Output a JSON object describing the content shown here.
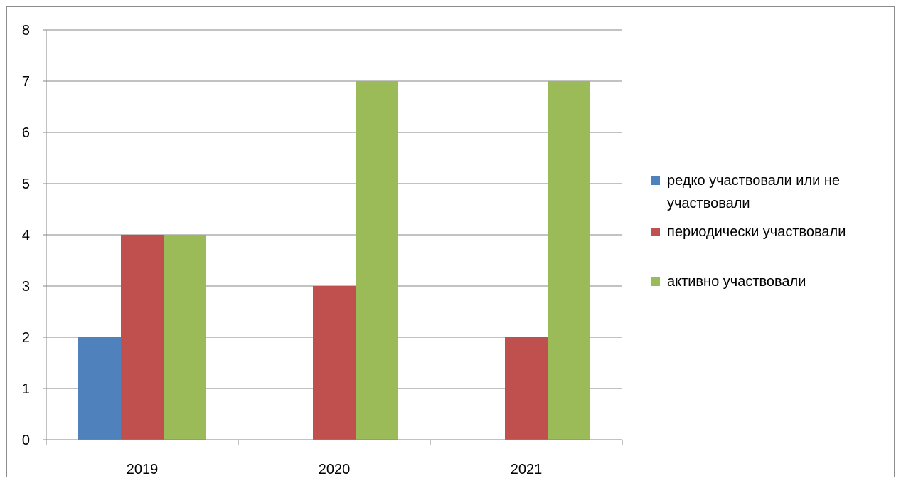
{
  "chart_data": {
    "type": "bar",
    "title": "",
    "xlabel": "",
    "ylabel": "",
    "categories": [
      "2019",
      "2020",
      "2021"
    ],
    "ylim": [
      0,
      8
    ],
    "yticks": [
      "0",
      "1",
      "2",
      "3",
      "4",
      "5",
      "6",
      "7",
      "8"
    ],
    "grid": true,
    "legend_position": "right",
    "series": [
      {
        "name": "редко участвовали или не участвовали",
        "color": "#4F81BD",
        "values": [
          2,
          0,
          0
        ]
      },
      {
        "name": "периодически участвовали",
        "color": "#C0504D",
        "values": [
          4,
          3,
          2
        ]
      },
      {
        "name": "активно участвовали",
        "color": "#9BBB59",
        "values": [
          4,
          7,
          7
        ]
      }
    ]
  }
}
